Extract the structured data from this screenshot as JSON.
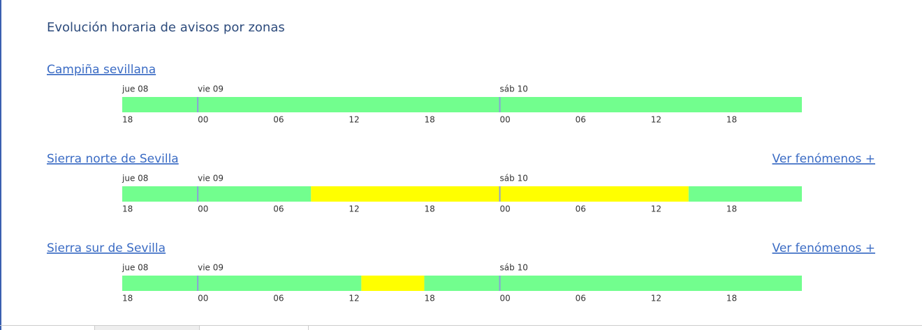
{
  "header": {
    "title": "Evolución horaria de avisos por zonas"
  },
  "timeline": {
    "xlim": [
      0,
      54
    ],
    "days": [
      {
        "value": 0,
        "label": "jue 08"
      },
      {
        "value": 6,
        "label": "vie 09"
      },
      {
        "value": 30,
        "label": "sáb 10"
      }
    ],
    "hours": [
      {
        "value": 0,
        "label": "18"
      },
      {
        "value": 6,
        "label": "00"
      },
      {
        "value": 12,
        "label": "06"
      },
      {
        "value": 18,
        "label": "12"
      },
      {
        "value": 24,
        "label": "18"
      },
      {
        "value": 30,
        "label": "00"
      },
      {
        "value": 36,
        "label": "06"
      },
      {
        "value": 42,
        "label": "12"
      },
      {
        "value": 48,
        "label": "18"
      }
    ]
  },
  "zones": [
    {
      "name": "Campiña sevillana",
      "segments": [
        {
          "start": 0,
          "end": 54,
          "color": "#72fe8e"
        }
      ]
    },
    {
      "name": "Sierra norte de Sevilla",
      "link": "Ver fenómenos +",
      "segments": [
        {
          "start": 0,
          "end": 15,
          "color": "#72fe8e"
        },
        {
          "start": 15,
          "end": 45,
          "color": "#ffff00"
        },
        {
          "start": 45,
          "end": 54,
          "color": "#72fe8e"
        }
      ]
    },
    {
      "name": "Sierra sur de Sevilla",
      "link": "Ver fenómenos +",
      "segments": [
        {
          "start": 0,
          "end": 19,
          "color": "#72fe8e"
        },
        {
          "start": 19,
          "end": 24,
          "color": "#ffff00"
        },
        {
          "start": 24,
          "end": 54,
          "color": "#72fe8e"
        }
      ]
    }
  ]
}
